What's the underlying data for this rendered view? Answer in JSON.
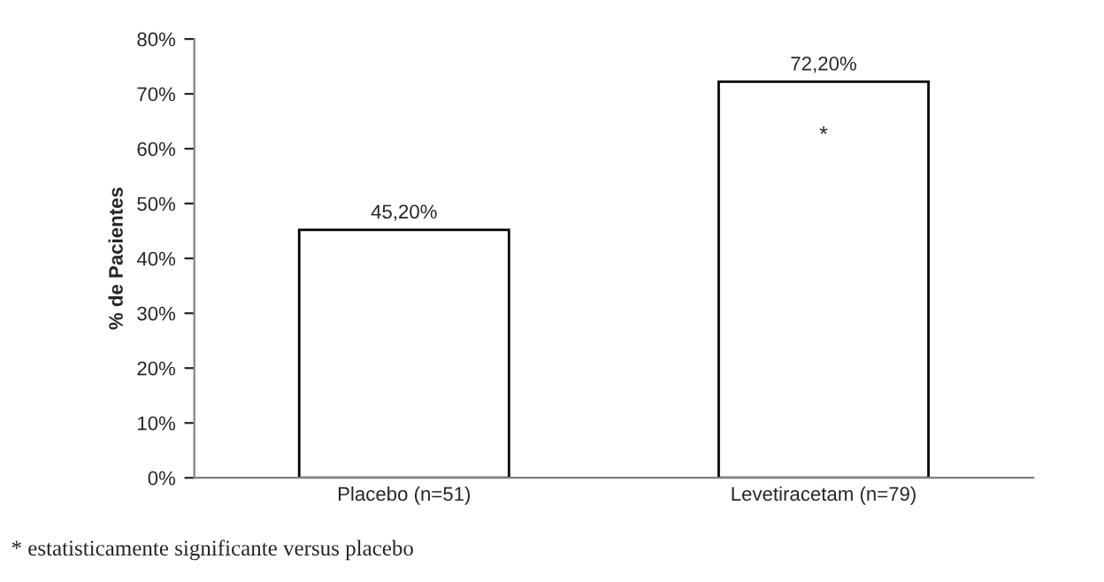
{
  "chart_data": {
    "type": "bar",
    "ylabel": "% de Pacientes",
    "categories": [
      "Placebo (n=51)",
      "Levetiracetam (n=79)"
    ],
    "values": [
      45.2,
      72.2
    ],
    "color": "#ffffff",
    "value_labels": [
      "45,20%",
      "72,20%"
    ],
    "ylim": [
      0,
      80
    ],
    "yticks": [
      {
        "value": 0,
        "label": "0%"
      },
      {
        "value": 10,
        "label": "10%"
      },
      {
        "value": 20,
        "label": "20%"
      },
      {
        "value": 30,
        "label": "30%"
      },
      {
        "value": 40,
        "label": "40%"
      },
      {
        "value": 50,
        "label": "50%"
      },
      {
        "value": 60,
        "label": "60%"
      },
      {
        "value": 70,
        "label": "70%"
      },
      {
        "value": 80,
        "label": "80%"
      }
    ],
    "grid": false,
    "legend": false,
    "annotations": [
      "*",
      "* estatisticamente significante versus placebo"
    ]
  }
}
